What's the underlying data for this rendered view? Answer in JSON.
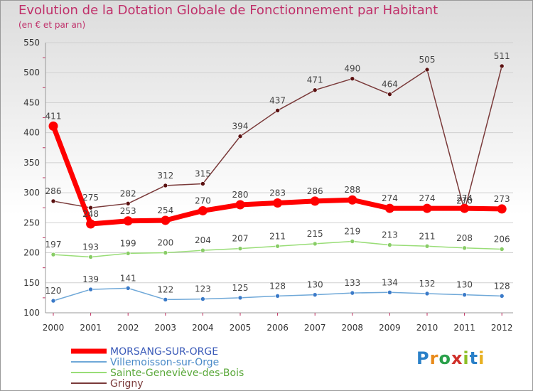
{
  "title": "Evolution de la Dotation Globale de Fonctionnement par Habitant",
  "subtitle": "(en € et par an)",
  "logo_text": "Proxiti",
  "chart_data": {
    "type": "line",
    "title": "Evolution de la Dotation Globale de Fonctionnement par Habitant",
    "ylabel": "(en € et par an)",
    "xlabel": "",
    "ylim": [
      100,
      550
    ],
    "yticks": [
      100,
      150,
      200,
      250,
      300,
      350,
      400,
      450,
      500,
      550
    ],
    "categories": [
      "2000",
      "2001",
      "2002",
      "2003",
      "2004",
      "2005",
      "2006",
      "2007",
      "2008",
      "2009",
      "2010",
      "2011",
      "2012"
    ],
    "series": [
      {
        "name": "MORSANG-SUR-ORGE",
        "color": "#ff0000",
        "values": [
          411,
          248,
          253,
          254,
          270,
          280,
          283,
          286,
          288,
          274,
          274,
          274,
          273
        ]
      },
      {
        "name": "Villemoisson-sur-Orge",
        "color": "#6fa8d8",
        "values": [
          120,
          139,
          141,
          122,
          123,
          125,
          128,
          130,
          133,
          134,
          132,
          130,
          128
        ]
      },
      {
        "name": "Sainte-Geneviève-des-Bois",
        "color": "#99dd77",
        "values": [
          197,
          193,
          199,
          200,
          204,
          207,
          211,
          215,
          219,
          213,
          211,
          208,
          206
        ]
      },
      {
        "name": "Grigny",
        "color": "#7a3a3a",
        "values": [
          286,
          275,
          282,
          312,
          315,
          394,
          437,
          471,
          490,
          464,
          505,
          270,
          511
        ]
      }
    ],
    "legend_position": "bottom-left"
  }
}
